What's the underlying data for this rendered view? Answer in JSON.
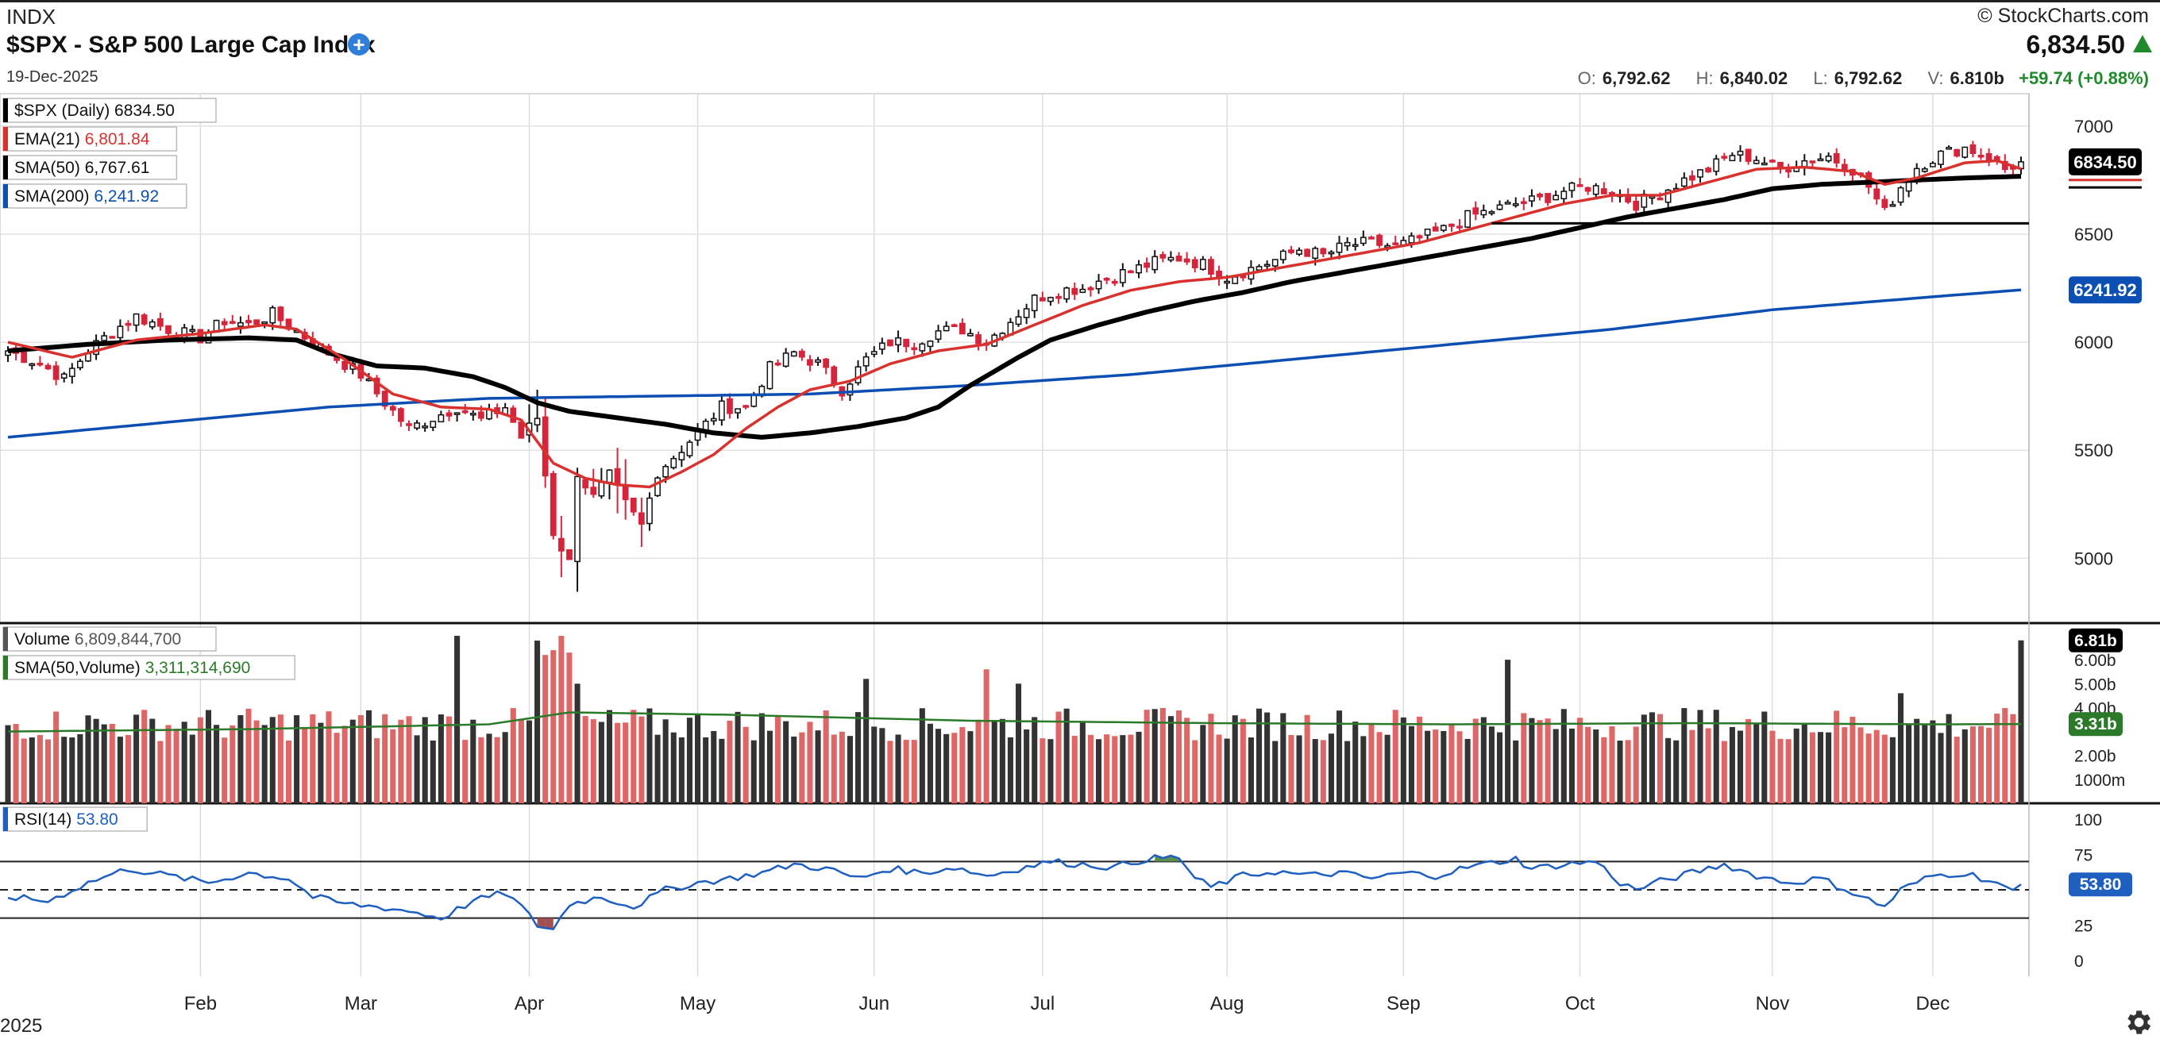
{
  "header": {
    "exchange": "INDX",
    "title": "$SPX - S&P 500 Large Cap Index",
    "date": "19-Dec-2025",
    "brand": "© StockCharts.com",
    "last_price": "6,834.50",
    "open_label": "O:",
    "open": "6,792.62",
    "high_label": "H:",
    "high": "6,840.02",
    "low_label": "L:",
    "low": "6,792.62",
    "volume_label": "V:",
    "volume": "6.810b",
    "change": "+59.74 (+0.88%)"
  },
  "colors": {
    "up_candle": "#ffffff",
    "down_candle": "#d8243b",
    "ema21": "#d8312e",
    "sma50": "#000000",
    "sma200": "#0b4fb3",
    "volume_up": "#333333",
    "volume_down": "#e06666",
    "volume_sma": "#2a7a2a",
    "rsi": "#1f5fbf",
    "change": "#1f8a2b"
  },
  "icons": {
    "add": "plus-circle-icon",
    "settings": "gear-icon",
    "change": "up-triangle-icon"
  },
  "chart_data": [
    {
      "type": "candlestick",
      "title": "$SPX - S&P 500 Large Cap Index",
      "ylim": [
        4700,
        7150
      ],
      "y_ticks": [
        "7000",
        "6500",
        "6000",
        "5500",
        "5000"
      ],
      "y_tick_values": [
        7000,
        6500,
        6000,
        5500,
        5000
      ],
      "x_labels": [
        "Feb",
        "Mar",
        "Apr",
        "May",
        "Jun",
        "Jul",
        "Aug",
        "Sep",
        "Oct",
        "Nov",
        "Dec"
      ],
      "x_label_days": [
        24,
        44,
        65,
        86,
        108,
        129,
        152,
        174,
        196,
        220,
        240
      ],
      "year_label": "2025",
      "legend": [
        {
          "name": "$SPX (Daily)",
          "value": "6834.50",
          "color": "#000000"
        },
        {
          "name": "EMA(21)",
          "value": "6,801.84",
          "color": "#d8312e"
        },
        {
          "name": "SMA(50)",
          "value": "6,767.61",
          "color": "#000000"
        },
        {
          "name": "SMA(200)",
          "value": "6,241.92",
          "color": "#0b4fb3"
        }
      ],
      "price_tags": [
        {
          "value": 6834.5,
          "label": "6834.50",
          "color": "#000000"
        },
        {
          "value": 6241.92,
          "label": "6241.92",
          "color": "#0b4fb3"
        }
      ],
      "support_line": {
        "value": 6550,
        "from_day": 185
      },
      "close_anchors": [
        [
          0,
          5960
        ],
        [
          4,
          5900
        ],
        [
          7,
          5830
        ],
        [
          10,
          5960
        ],
        [
          13,
          6050
        ],
        [
          16,
          6120
        ],
        [
          20,
          6060
        ],
        [
          24,
          6020
        ],
        [
          27,
          6100
        ],
        [
          30,
          6080
        ],
        [
          33,
          6130
        ],
        [
          36,
          6050
        ],
        [
          40,
          5950
        ],
        [
          44,
          5850
        ],
        [
          47,
          5720
        ],
        [
          50,
          5600
        ],
        [
          53,
          5650
        ],
        [
          56,
          5700
        ],
        [
          59,
          5640
        ],
        [
          62,
          5700
        ],
        [
          64,
          5560
        ],
        [
          66,
          5650
        ],
        [
          68,
          5120
        ],
        [
          70,
          4980
        ],
        [
          71,
          5400
        ],
        [
          73,
          5280
        ],
        [
          75,
          5380
        ],
        [
          77,
          5250
        ],
        [
          79,
          5150
        ],
        [
          81,
          5400
        ],
        [
          83,
          5470
        ],
        [
          86,
          5580
        ],
        [
          89,
          5700
        ],
        [
          92,
          5700
        ],
        [
          95,
          5880
        ],
        [
          98,
          5950
        ],
        [
          101,
          5900
        ],
        [
          104,
          5780
        ],
        [
          107,
          5920
        ],
        [
          110,
          6000
        ],
        [
          113,
          6000
        ],
        [
          116,
          6050
        ],
        [
          119,
          6060
        ],
        [
          122,
          6000
        ],
        [
          125,
          6100
        ],
        [
          128,
          6200
        ],
        [
          131,
          6240
        ],
        [
          134,
          6250
        ],
        [
          137,
          6300
        ],
        [
          140,
          6330
        ],
        [
          143,
          6370
        ],
        [
          146,
          6390
        ],
        [
          149,
          6360
        ],
        [
          152,
          6300
        ],
        [
          155,
          6340
        ],
        [
          158,
          6380
        ],
        [
          161,
          6430
        ],
        [
          164,
          6400
        ],
        [
          167,
          6450
        ],
        [
          170,
          6460
        ],
        [
          173,
          6440
        ],
        [
          176,
          6480
        ],
        [
          179,
          6520
        ],
        [
          182,
          6580
        ],
        [
          185,
          6610
        ],
        [
          188,
          6640
        ],
        [
          191,
          6660
        ],
        [
          194,
          6700
        ],
        [
          197,
          6720
        ],
        [
          200,
          6700
        ],
        [
          203,
          6640
        ],
        [
          206,
          6690
        ],
        [
          209,
          6750
        ],
        [
          212,
          6800
        ],
        [
          215,
          6870
        ],
        [
          218,
          6850
        ],
        [
          221,
          6800
        ],
        [
          224,
          6840
        ],
        [
          227,
          6860
        ],
        [
          230,
          6800
        ],
        [
          232,
          6720
        ],
        [
          234,
          6600
        ],
        [
          236,
          6720
        ],
        [
          238,
          6810
        ],
        [
          241,
          6870
        ],
        [
          244,
          6900
        ],
        [
          247,
          6860
        ],
        [
          249,
          6800
        ],
        [
          251,
          6834.5
        ]
      ],
      "ema21_anchors": [
        [
          0,
          6000
        ],
        [
          8,
          5930
        ],
        [
          16,
          6010
        ],
        [
          24,
          6040
        ],
        [
          32,
          6080
        ],
        [
          36,
          6060
        ],
        [
          42,
          5920
        ],
        [
          48,
          5760
        ],
        [
          54,
          5700
        ],
        [
          60,
          5690
        ],
        [
          64,
          5640
        ],
        [
          68,
          5440
        ],
        [
          72,
          5370
        ],
        [
          76,
          5340
        ],
        [
          80,
          5330
        ],
        [
          84,
          5400
        ],
        [
          88,
          5480
        ],
        [
          92,
          5600
        ],
        [
          96,
          5700
        ],
        [
          100,
          5780
        ],
        [
          105,
          5820
        ],
        [
          110,
          5900
        ],
        [
          116,
          5960
        ],
        [
          122,
          5990
        ],
        [
          128,
          6080
        ],
        [
          134,
          6170
        ],
        [
          140,
          6240
        ],
        [
          146,
          6280
        ],
        [
          152,
          6300
        ],
        [
          158,
          6340
        ],
        [
          164,
          6380
        ],
        [
          170,
          6420
        ],
        [
          176,
          6460
        ],
        [
          182,
          6520
        ],
        [
          188,
          6580
        ],
        [
          194,
          6640
        ],
        [
          200,
          6680
        ],
        [
          206,
          6680
        ],
        [
          212,
          6740
        ],
        [
          218,
          6800
        ],
        [
          224,
          6810
        ],
        [
          230,
          6790
        ],
        [
          234,
          6730
        ],
        [
          238,
          6760
        ],
        [
          244,
          6830
        ],
        [
          248,
          6840
        ],
        [
          251,
          6801.84
        ]
      ],
      "sma50_anchors": [
        [
          0,
          5960
        ],
        [
          10,
          5990
        ],
        [
          20,
          6010
        ],
        [
          30,
          6020
        ],
        [
          36,
          6010
        ],
        [
          40,
          5950
        ],
        [
          46,
          5890
        ],
        [
          52,
          5880
        ],
        [
          58,
          5840
        ],
        [
          62,
          5790
        ],
        [
          66,
          5720
        ],
        [
          70,
          5680
        ],
        [
          76,
          5650
        ],
        [
          82,
          5620
        ],
        [
          88,
          5580
        ],
        [
          94,
          5560
        ],
        [
          100,
          5580
        ],
        [
          106,
          5610
        ],
        [
          112,
          5650
        ],
        [
          116,
          5700
        ],
        [
          120,
          5800
        ],
        [
          126,
          5930
        ],
        [
          130,
          6010
        ],
        [
          136,
          6080
        ],
        [
          142,
          6140
        ],
        [
          148,
          6190
        ],
        [
          154,
          6230
        ],
        [
          160,
          6280
        ],
        [
          166,
          6320
        ],
        [
          172,
          6360
        ],
        [
          178,
          6400
        ],
        [
          184,
          6440
        ],
        [
          190,
          6480
        ],
        [
          196,
          6530
        ],
        [
          202,
          6580
        ],
        [
          208,
          6620
        ],
        [
          214,
          6660
        ],
        [
          220,
          6710
        ],
        [
          226,
          6730
        ],
        [
          232,
          6740
        ],
        [
          238,
          6750
        ],
        [
          244,
          6760
        ],
        [
          251,
          6767.61
        ]
      ],
      "sma200_anchors": [
        [
          0,
          5560
        ],
        [
          20,
          5630
        ],
        [
          40,
          5700
        ],
        [
          60,
          5740
        ],
        [
          80,
          5750
        ],
        [
          100,
          5760
        ],
        [
          120,
          5800
        ],
        [
          140,
          5850
        ],
        [
          160,
          5920
        ],
        [
          180,
          5990
        ],
        [
          200,
          6060
        ],
        [
          220,
          6150
        ],
        [
          240,
          6210
        ],
        [
          251,
          6241.92
        ]
      ]
    },
    {
      "type": "bar",
      "title": "Volume",
      "legend": [
        {
          "name": "Volume",
          "value": "6,809,844,700",
          "color": "#555555"
        },
        {
          "name": "SMA(50,Volume)",
          "value": "3,311,314,690",
          "color": "#2a7a2a"
        }
      ],
      "y_ticks": [
        "6.00b",
        "5.00b",
        "4.00b",
        "2.00b",
        "1000m"
      ],
      "y_tick_values": [
        6000000000,
        5000000000,
        4000000000,
        2000000000,
        1000000000
      ],
      "ylim": [
        0,
        7200000000
      ],
      "last_volume_tag": {
        "value": 6810000000,
        "label": "6.81b"
      },
      "sma_tag": {
        "value": 3310000000,
        "label": "3.31b"
      },
      "spikes": [
        [
          56,
          7000
        ],
        [
          66,
          6800
        ],
        [
          67,
          6200
        ],
        [
          68,
          6400
        ],
        [
          69,
          7000
        ],
        [
          70,
          6300
        ],
        [
          71,
          5000
        ],
        [
          107,
          5200
        ],
        [
          122,
          5600
        ],
        [
          126,
          5000
        ],
        [
          187,
          6000
        ],
        [
          236,
          4600
        ],
        [
          251,
          6810
        ]
      ],
      "volume_sma_anchors": [
        [
          0,
          3000
        ],
        [
          30,
          3100
        ],
        [
          60,
          3300
        ],
        [
          70,
          3800
        ],
        [
          90,
          3700
        ],
        [
          120,
          3450
        ],
        [
          150,
          3350
        ],
        [
          180,
          3300
        ],
        [
          210,
          3350
        ],
        [
          240,
          3300
        ],
        [
          251,
          3311
        ]
      ]
    },
    {
      "type": "line",
      "title": "RSI(14)",
      "legend": [
        {
          "name": "RSI(14)",
          "value": "53.80",
          "color": "#1f5fbf"
        }
      ],
      "ylim": [
        0,
        100
      ],
      "y_ticks": [
        "100",
        "75",
        "50",
        "25",
        "0"
      ],
      "y_tick_values": [
        100,
        75,
        50,
        25,
        0
      ],
      "overbought": 70,
      "oversold": 30,
      "midline": 50,
      "last_tag": {
        "value": 53.8,
        "label": "53.80"
      },
      "rsi_anchors": [
        [
          0,
          45
        ],
        [
          5,
          42
        ],
        [
          10,
          55
        ],
        [
          15,
          65
        ],
        [
          20,
          60
        ],
        [
          25,
          55
        ],
        [
          30,
          62
        ],
        [
          35,
          58
        ],
        [
          38,
          45
        ],
        [
          42,
          40
        ],
        [
          46,
          38
        ],
        [
          50,
          35
        ],
        [
          54,
          30
        ],
        [
          58,
          42
        ],
        [
          62,
          48
        ],
        [
          64,
          38
        ],
        [
          66,
          25
        ],
        [
          68,
          22
        ],
        [
          70,
          40
        ],
        [
          74,
          45
        ],
        [
          78,
          38
        ],
        [
          82,
          50
        ],
        [
          86,
          55
        ],
        [
          90,
          58
        ],
        [
          94,
          62
        ],
        [
          98,
          68
        ],
        [
          102,
          65
        ],
        [
          106,
          58
        ],
        [
          110,
          65
        ],
        [
          114,
          62
        ],
        [
          118,
          66
        ],
        [
          122,
          60
        ],
        [
          126,
          65
        ],
        [
          130,
          70
        ],
        [
          134,
          68
        ],
        [
          138,
          66
        ],
        [
          142,
          72
        ],
        [
          146,
          73
        ],
        [
          148,
          58
        ],
        [
          150,
          52
        ],
        [
          154,
          60
        ],
        [
          158,
          63
        ],
        [
          162,
          60
        ],
        [
          166,
          62
        ],
        [
          170,
          58
        ],
        [
          174,
          62
        ],
        [
          178,
          60
        ],
        [
          182,
          66
        ],
        [
          186,
          70
        ],
        [
          188,
          72
        ],
        [
          190,
          65
        ],
        [
          194,
          68
        ],
        [
          198,
          70
        ],
        [
          201,
          55
        ],
        [
          203,
          50
        ],
        [
          206,
          56
        ],
        [
          210,
          62
        ],
        [
          214,
          68
        ],
        [
          218,
          60
        ],
        [
          222,
          55
        ],
        [
          226,
          58
        ],
        [
          230,
          48
        ],
        [
          234,
          38
        ],
        [
          236,
          50
        ],
        [
          240,
          60
        ],
        [
          244,
          62
        ],
        [
          248,
          55
        ],
        [
          250,
          48
        ],
        [
          251,
          53.8
        ]
      ]
    }
  ]
}
